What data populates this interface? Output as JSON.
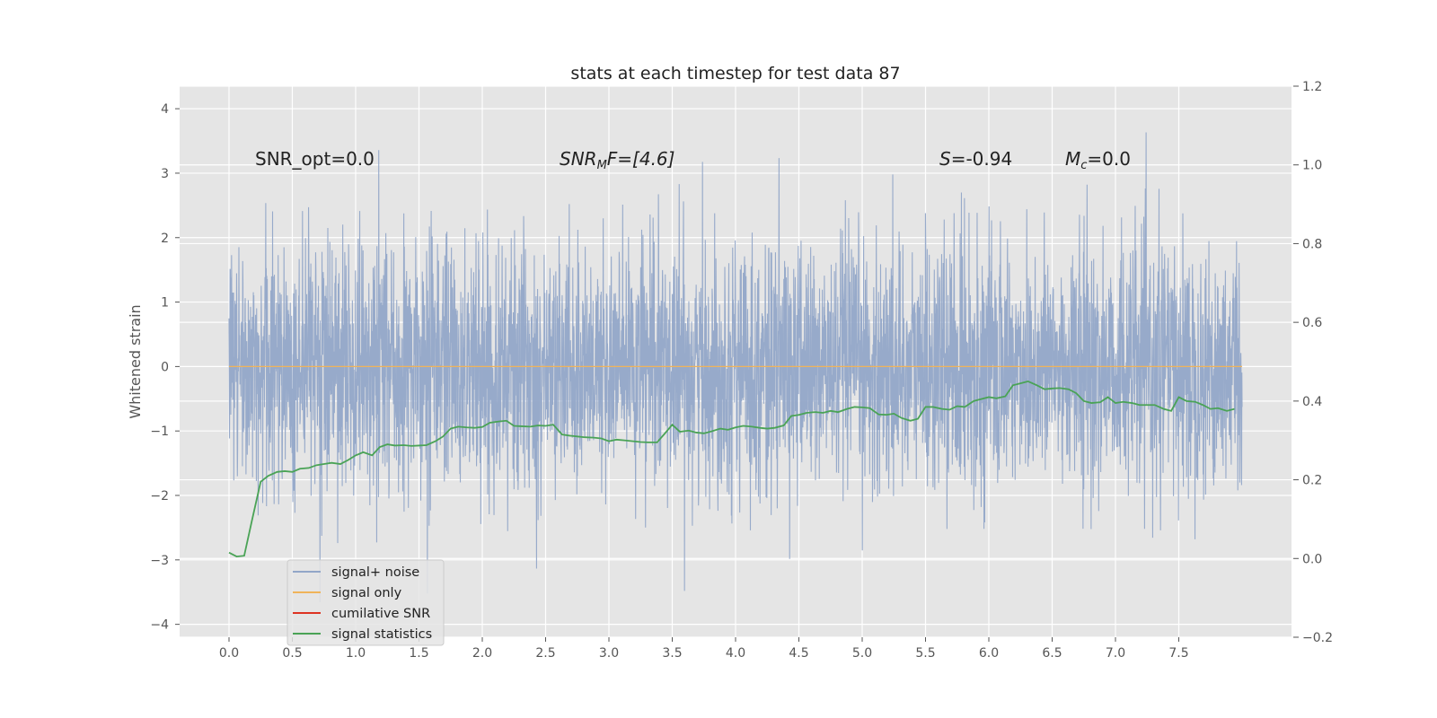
{
  "chart_data": {
    "type": "line",
    "title": "stats at each timestep for test data 87",
    "xlabel": "",
    "ylabel": "Whitened strain",
    "ylabel_right": "",
    "xlim": [
      -0.39,
      8.39
    ],
    "ylim": [
      -4.2,
      4.35
    ],
    "ylim_right": [
      -0.2,
      1.2
    ],
    "x_ticks": [
      "0.0",
      "0.5",
      "1.0",
      "1.5",
      "2.0",
      "2.5",
      "3.0",
      "3.5",
      "4.0",
      "4.5",
      "5.0",
      "5.5",
      "6.0",
      "6.5",
      "7.0",
      "7.5"
    ],
    "y_ticks": [
      "−4",
      "−3",
      "−2",
      "−1",
      "0",
      "1",
      "2",
      "3",
      "4"
    ],
    "y_ticks_right": [
      "−0.2",
      "0.0",
      "0.2",
      "0.4",
      "0.6",
      "0.8",
      "1.0",
      "1.2"
    ],
    "grid": true,
    "legend_position": "lower-left",
    "annotations": {
      "snr_opt": "SNR_opt=0.0",
      "snr_mf_prefix": "SNR",
      "snr_mf_sub": "M",
      "snr_mf_suffix": "F=[4.6]",
      "s_prefix": "S",
      "s_suffix": "=-0.94",
      "mc_prefix": "M",
      "mc_sub": "c",
      "mc_suffix": "=0.0"
    },
    "series": [
      {
        "name": "signal+ noise",
        "color": "#92a6c8",
        "axis": "left",
        "description_range": [
          -3.8,
          4.0
        ],
        "x_range": [
          0.0,
          8.0
        ]
      },
      {
        "name": "signal only",
        "color": "#f0b45a",
        "axis": "left",
        "x": [
          0.0,
          8.0
        ],
        "y": [
          0.0,
          0.0
        ]
      },
      {
        "name": "cumilative SNR",
        "color": "#dd3322",
        "axis": "left",
        "x": [],
        "y": []
      },
      {
        "name": "signal statistics",
        "color": "#4aa356",
        "axis": "right",
        "x": [
          0.0,
          0.06,
          0.12,
          0.18,
          0.25,
          0.31,
          0.38,
          0.44,
          0.5,
          0.56,
          0.63,
          0.69,
          0.75,
          0.81,
          0.88,
          0.94,
          1.0,
          1.06,
          1.13,
          1.19,
          1.25,
          1.31,
          1.38,
          1.44,
          1.5,
          1.56,
          1.63,
          1.69,
          1.75,
          1.81,
          1.88,
          1.94,
          2.0,
          2.06,
          2.13,
          2.19,
          2.25,
          2.31,
          2.38,
          2.44,
          2.5,
          2.56,
          2.63,
          2.69,
          2.75,
          2.81,
          2.88,
          2.94,
          3.0,
          3.06,
          3.13,
          3.19,
          3.25,
          3.31,
          3.38,
          3.44,
          3.5,
          3.56,
          3.63,
          3.69,
          3.75,
          3.81,
          3.88,
          3.94,
          4.0,
          4.06,
          4.13,
          4.19,
          4.25,
          4.31,
          4.38,
          4.44,
          4.5,
          4.56,
          4.63,
          4.69,
          4.75,
          4.81,
          4.88,
          4.94,
          5.0,
          5.06,
          5.13,
          5.19,
          5.25,
          5.31,
          5.38,
          5.44,
          5.5,
          5.56,
          5.63,
          5.69,
          5.75,
          5.81,
          5.88,
          5.94,
          6.0,
          6.06,
          6.13,
          6.19,
          6.25,
          6.31,
          6.38,
          6.44,
          6.5,
          6.56,
          6.63,
          6.69,
          6.75,
          6.81,
          6.88,
          6.94,
          7.0,
          7.06,
          7.13,
          7.19,
          7.25,
          7.31,
          7.38,
          7.44,
          7.5,
          7.56,
          7.63,
          7.69,
          7.75,
          7.81,
          7.88,
          7.94
        ],
        "y": [
          0.015,
          0.005,
          0.007,
          0.095,
          0.195,
          0.21,
          0.22,
          0.222,
          0.22,
          0.228,
          0.23,
          0.237,
          0.24,
          0.243,
          0.24,
          0.25,
          0.262,
          0.27,
          0.262,
          0.283,
          0.29,
          0.287,
          0.288,
          0.286,
          0.287,
          0.288,
          0.298,
          0.31,
          0.33,
          0.335,
          0.333,
          0.332,
          0.334,
          0.345,
          0.348,
          0.35,
          0.337,
          0.336,
          0.335,
          0.338,
          0.337,
          0.34,
          0.315,
          0.312,
          0.31,
          0.308,
          0.307,
          0.305,
          0.298,
          0.302,
          0.3,
          0.298,
          0.296,
          0.295,
          0.295,
          0.317,
          0.34,
          0.322,
          0.325,
          0.32,
          0.318,
          0.323,
          0.33,
          0.327,
          0.333,
          0.337,
          0.335,
          0.332,
          0.33,
          0.332,
          0.338,
          0.362,
          0.365,
          0.37,
          0.372,
          0.37,
          0.375,
          0.372,
          0.38,
          0.385,
          0.384,
          0.382,
          0.366,
          0.365,
          0.368,
          0.357,
          0.35,
          0.355,
          0.385,
          0.385,
          0.38,
          0.378,
          0.387,
          0.385,
          0.4,
          0.405,
          0.41,
          0.407,
          0.412,
          0.44,
          0.445,
          0.45,
          0.44,
          0.43,
          0.432,
          0.433,
          0.43,
          0.42,
          0.4,
          0.395,
          0.397,
          0.41,
          0.395,
          0.398,
          0.395,
          0.39,
          0.39,
          0.39,
          0.38,
          0.375,
          0.41,
          0.4,
          0.398,
          0.39,
          0.38,
          0.382,
          0.375,
          0.38
        ]
      }
    ]
  }
}
